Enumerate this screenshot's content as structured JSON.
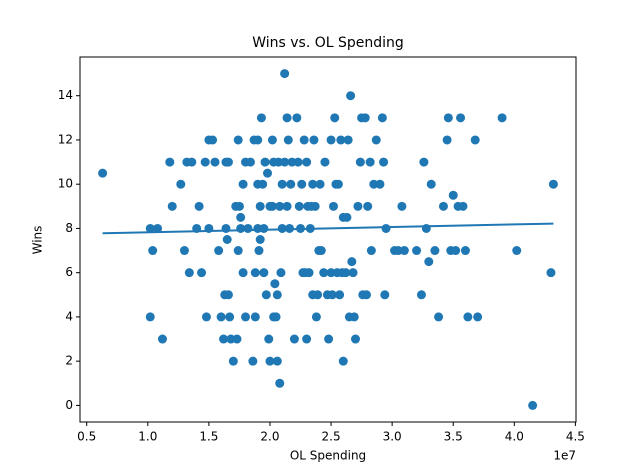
{
  "chart_data": {
    "type": "scatter",
    "title": "Wins vs. OL Spending",
    "x_label": "OL Spending",
    "y_label": "Wins",
    "x_offset_label": "1e7",
    "xlim": [
      4450000,
      45050000
    ],
    "ylim": [
      -0.75,
      15.75
    ],
    "xticks": [
      {
        "value": 5000000,
        "label": "0.5"
      },
      {
        "value": 10000000,
        "label": "1.0"
      },
      {
        "value": 15000000,
        "label": "1.5"
      },
      {
        "value": 20000000,
        "label": "2.0"
      },
      {
        "value": 25000000,
        "label": "2.5"
      },
      {
        "value": 30000000,
        "label": "3.0"
      },
      {
        "value": 35000000,
        "label": "3.5"
      },
      {
        "value": 40000000,
        "label": "4.0"
      },
      {
        "value": 45000000,
        "label": "4.5"
      }
    ],
    "yticks": [
      0,
      2,
      4,
      6,
      8,
      10,
      12,
      14
    ],
    "color": "#1f77b4",
    "x": [
      6300000,
      10200000,
      10200000,
      10400000,
      10800000,
      11200000,
      11800000,
      12000000,
      12700000,
      13000000,
      13200000,
      13400000,
      13600000,
      14000000,
      14200000,
      14400000,
      14700000,
      14800000,
      15000000,
      15000000,
      15300000,
      15500000,
      15800000,
      16000000,
      16200000,
      16300000,
      16400000,
      16400000,
      16500000,
      16600000,
      16600000,
      16700000,
      16800000,
      17000000,
      17200000,
      17300000,
      17400000,
      17400000,
      17500000,
      17600000,
      17600000,
      17800000,
      17800000,
      18000000,
      18000000,
      18200000,
      18400000,
      18600000,
      18700000,
      18800000,
      18800000,
      19000000,
      19000000,
      19000000,
      19100000,
      19200000,
      19200000,
      19300000,
      19400000,
      19500000,
      19500000,
      19600000,
      19700000,
      19800000,
      19900000,
      20000000,
      20000000,
      20200000,
      20200000,
      20300000,
      20300000,
      20400000,
      20500000,
      20600000,
      20600000,
      20700000,
      20800000,
      20800000,
      20900000,
      21000000,
      21000000,
      21200000,
      21200000,
      21400000,
      21400000,
      21500000,
      21600000,
      21700000,
      21800000,
      22000000,
      22200000,
      22300000,
      22400000,
      22500000,
      22600000,
      22700000,
      22800000,
      22900000,
      23000000,
      23000000,
      23100000,
      23200000,
      23300000,
      23400000,
      23500000,
      23500000,
      23600000,
      23700000,
      23800000,
      23900000,
      24000000,
      24100000,
      24200000,
      24400000,
      24500000,
      24700000,
      24800000,
      25000000,
      25000000,
      25100000,
      25200000,
      25300000,
      25400000,
      25500000,
      25600000,
      25700000,
      25800000,
      25900000,
      26000000,
      26000000,
      26200000,
      26300000,
      26400000,
      26500000,
      26600000,
      26700000,
      26800000,
      26900000,
      27000000,
      27200000,
      27400000,
      27500000,
      27600000,
      27800000,
      27900000,
      28000000,
      28200000,
      28300000,
      28500000,
      28700000,
      29000000,
      29200000,
      29300000,
      29400000,
      29500000,
      30200000,
      30500000,
      30800000,
      31000000,
      32000000,
      32400000,
      32600000,
      32800000,
      33000000,
      33200000,
      33500000,
      33800000,
      34200000,
      34500000,
      34600000,
      34800000,
      35000000,
      35200000,
      35400000,
      35600000,
      35800000,
      36000000,
      36200000,
      36800000,
      37000000,
      39000000,
      40200000,
      41500000,
      43000000,
      43200000
    ],
    "values": [
      10.5,
      8,
      4,
      7,
      8,
      3,
      11,
      9,
      10,
      7,
      11,
      6,
      11,
      8,
      9,
      6,
      11,
      4,
      8,
      12,
      12,
      11,
      7,
      4,
      3,
      5,
      11,
      8,
      7.5,
      11,
      5,
      4,
      3,
      2,
      9,
      3,
      12,
      7,
      9,
      8.5,
      8,
      10,
      6,
      11,
      4,
      8,
      11,
      2,
      12,
      6,
      4,
      12,
      8,
      10,
      7,
      9,
      7.5,
      13,
      10,
      6,
      8,
      11,
      5,
      10.5,
      3,
      9,
      2,
      12,
      9,
      4,
      11,
      5.5,
      4,
      2,
      5,
      11,
      9,
      1,
      6,
      10,
      8,
      11,
      15,
      13,
      9,
      12,
      8,
      10,
      11,
      3,
      13,
      11,
      9,
      8,
      10,
      6,
      12,
      6,
      3,
      11,
      9,
      6,
      8,
      9,
      5,
      10,
      12,
      9,
      4,
      5,
      7,
      10,
      7,
      6,
      11,
      5,
      3,
      6,
      12,
      5,
      9,
      13,
      10,
      6,
      10,
      5,
      12,
      6,
      2,
      8.5,
      6,
      8.5,
      12,
      4,
      14,
      6.5,
      6,
      4,
      3,
      9,
      11,
      13,
      5,
      13,
      5,
      9,
      11,
      7,
      10,
      12,
      10,
      13,
      11,
      5,
      8,
      7,
      7,
      9,
      7,
      7,
      5,
      11,
      8,
      6.5,
      10,
      7,
      4,
      9,
      12,
      13,
      7,
      9.5,
      7,
      9,
      13,
      9,
      7,
      4,
      12,
      4,
      13,
      7,
      0,
      6,
      10
    ],
    "trend": {
      "x": [
        6300000,
        43200000
      ],
      "values": [
        7.78,
        8.22
      ]
    }
  }
}
